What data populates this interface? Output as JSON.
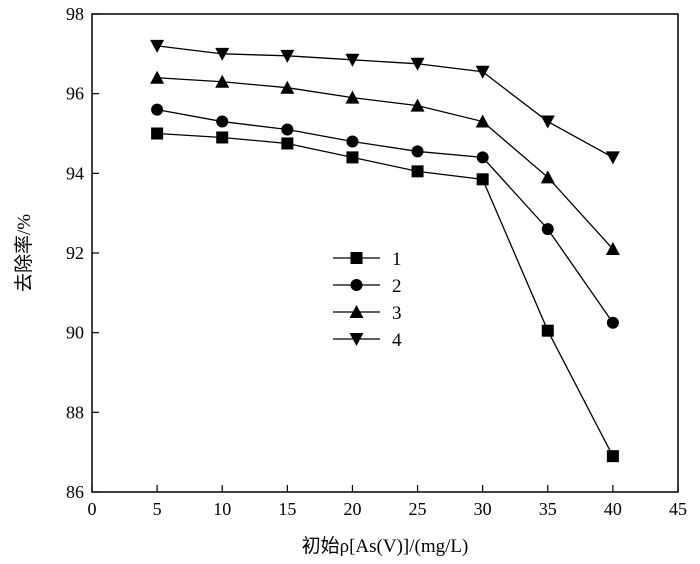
{
  "chart_data": {
    "type": "line",
    "xlabel": "初始ρ[As(V)]/(mg/L)",
    "ylabel": "去除率/%",
    "xlim": [
      0,
      45
    ],
    "ylim": [
      86,
      98
    ],
    "xticks": [
      0,
      5,
      10,
      15,
      20,
      25,
      30,
      35,
      40,
      45
    ],
    "yticks": [
      86,
      88,
      90,
      92,
      94,
      96,
      98
    ],
    "grid": false,
    "legend_position": "center",
    "x": [
      5,
      10,
      15,
      20,
      25,
      30,
      35,
      40
    ],
    "series": [
      {
        "name": "1",
        "marker": "square",
        "values": [
          95.0,
          94.9,
          94.75,
          94.4,
          94.05,
          93.85,
          90.05,
          86.9
        ]
      },
      {
        "name": "2",
        "marker": "circle",
        "values": [
          95.6,
          95.3,
          95.1,
          94.8,
          94.55,
          94.4,
          92.6,
          90.25
        ]
      },
      {
        "name": "3",
        "marker": "triangle-up",
        "values": [
          96.4,
          96.3,
          96.15,
          95.9,
          95.7,
          95.3,
          93.9,
          92.1
        ]
      },
      {
        "name": "4",
        "marker": "triangle-down",
        "values": [
          97.2,
          97.0,
          96.95,
          96.85,
          96.75,
          96.55,
          95.3,
          94.4
        ]
      }
    ],
    "colors": {
      "line": "#000000",
      "marker": "#000000",
      "axis": "#000000"
    }
  }
}
